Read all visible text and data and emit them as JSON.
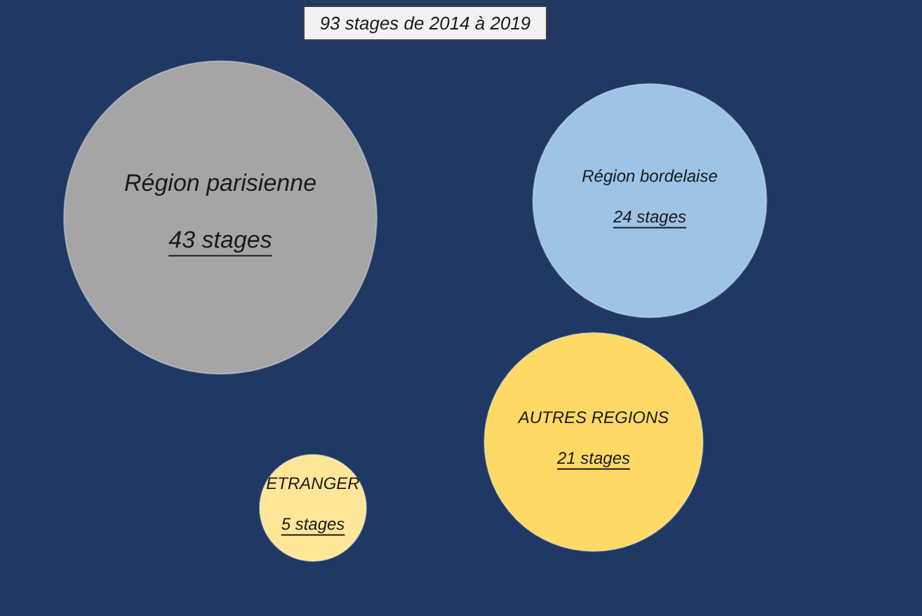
{
  "chart_data": {
    "type": "other",
    "title": "93 stages de 2014 à 2019",
    "categories": [
      "Région parisienne",
      "Région bordelaise",
      "AUTRES REGIONS",
      "ETRANGER"
    ],
    "values": [
      43,
      24,
      21,
      5
    ],
    "value_labels": [
      "43 stages",
      "24 stages",
      "21 stages",
      "5 stages"
    ],
    "colors": [
      "#a5a5a5",
      "#9dc3e6",
      "#ffd966",
      "#ffe699"
    ]
  }
}
